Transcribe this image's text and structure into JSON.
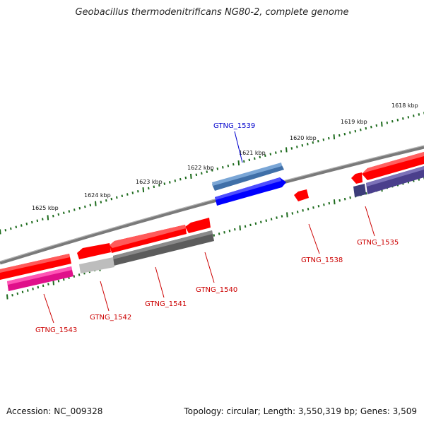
{
  "title": "Geobacillus thermodenitrificans NG80-2, complete genome",
  "footer": {
    "accession": "Accession: NC_009328",
    "summary": "Topology: circular; Length: 3,550,319 bp; Genes: 3,509"
  },
  "colors": {
    "backbone": "#7a7a7a",
    "tick": "#1d6b1d",
    "forward_label": "#0000cc",
    "reverse_label": "#cc0000"
  },
  "scale_labels": [
    "1618 kbp",
    "1619 kbp",
    "1620 kbp",
    "1621 kbp",
    "1622 kbp",
    "1623 kbp",
    "1624 kbp",
    "1625 kbp"
  ],
  "genes": [
    {
      "label": "GTNG_1539",
      "color": "#0000ff",
      "strand": "forward"
    },
    {
      "label": "GTNG_1535",
      "color": "#ff0000",
      "strand": "reverse"
    },
    {
      "label": "GTNG_1538",
      "color": "#ff0000",
      "strand": "reverse"
    },
    {
      "label": "GTNG_1540",
      "color": "#ff0000",
      "strand": "reverse"
    },
    {
      "label": "GTNG_1541",
      "color": "#ff0000",
      "strand": "reverse"
    },
    {
      "label": "GTNG_1542",
      "color": "#ff0000",
      "strand": "reverse"
    },
    {
      "label": "GTNG_1543",
      "color": "#ff0000",
      "strand": "reverse"
    }
  ]
}
